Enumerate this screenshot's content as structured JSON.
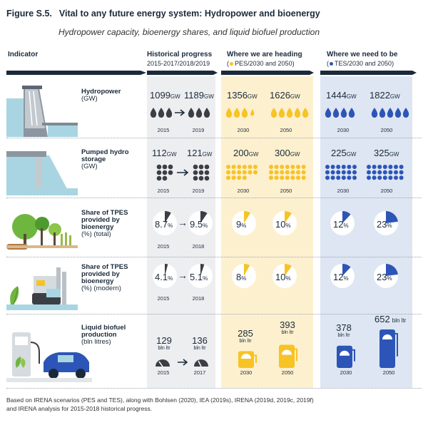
{
  "figure": {
    "number": "Figure S.5.",
    "title": "Vital to any future energy system: Hydropower and bioenergy",
    "subtitle": "Hydropower capacity, bioenergy shares, and liquid biofuel production"
  },
  "colors": {
    "navy": "#1b2a3a",
    "historical_bg": "#eceef0",
    "pes_bg": "#fdf0cf",
    "tes_bg": "#dde6f2",
    "yellow": "#f7c325",
    "blue": "#2d55b8",
    "grey_icon": "#3b3f45",
    "light_blue_scene": "#a9d5e2"
  },
  "headers": {
    "indicator": "Indicator",
    "historical": "Historical progress",
    "historical_sub": "2015-2017/2018/2019",
    "heading": "Where we are heading",
    "heading_sub": "PES/2030 and 2050)",
    "heading_sub_open": "(",
    "need": "Where we need to be",
    "need_sub": "TES/2030 and 2050)",
    "need_sub_open": "("
  },
  "rows": [
    {
      "label": "Hydropower",
      "unit": "(GW)",
      "icon": "hydropower-dam-icon",
      "hist": [
        {
          "value": "1099",
          "unit": "GW",
          "year": "2015"
        },
        {
          "value": "1189",
          "unit": "GW",
          "year": "2019"
        }
      ],
      "pes": [
        {
          "value": "1356",
          "unit": "GW",
          "year": "2030"
        },
        {
          "value": "1626",
          "unit": "GW",
          "year": "2050"
        }
      ],
      "tes": [
        {
          "value": "1444",
          "unit": "GW",
          "year": "2030"
        },
        {
          "value": "1822",
          "unit": "GW",
          "year": "2050"
        }
      ]
    },
    {
      "label": "Pumped hydro storage",
      "unit": "(GW)",
      "icon": "pumped-hydro-icon",
      "hist": [
        {
          "value": "112",
          "unit": "GW",
          "year": "2015"
        },
        {
          "value": "121",
          "unit": "GW",
          "year": "2019"
        }
      ],
      "pes": [
        {
          "value": "200",
          "unit": "GW",
          "year": "2030"
        },
        {
          "value": "300",
          "unit": "GW",
          "year": "2050"
        }
      ],
      "tes": [
        {
          "value": "225",
          "unit": "GW",
          "year": "2030"
        },
        {
          "value": "325",
          "unit": "GW",
          "year": "2050"
        }
      ]
    },
    {
      "label": "Share of TPES provided by bioenergy",
      "unit": "(%) (total)",
      "icon": "forest-icon",
      "hist": [
        {
          "value": "8.7",
          "unit": "%",
          "year": "2015",
          "share": 0.087
        },
        {
          "value": "9.5",
          "unit": "%",
          "year": "2018",
          "share": 0.095
        }
      ],
      "pes": [
        {
          "value": "9",
          "unit": "%",
          "year": "",
          "share": 0.09
        },
        {
          "value": "10",
          "unit": "%",
          "year": "",
          "share": 0.1
        }
      ],
      "tes": [
        {
          "value": "12",
          "unit": "%",
          "year": "",
          "share": 0.12
        },
        {
          "value": "23",
          "unit": "%",
          "year": "",
          "share": 0.23
        }
      ]
    },
    {
      "label": "Share of TPES provided by bioenergy",
      "unit": "(%) (modern)",
      "icon": "bio-plant-icon",
      "hist": [
        {
          "value": "4.1",
          "unit": "%",
          "year": "2015",
          "share": 0.041
        },
        {
          "value": "5.1",
          "unit": "%",
          "year": "2018",
          "share": 0.051
        }
      ],
      "pes": [
        {
          "value": "8",
          "unit": "%",
          "year": "",
          "share": 0.08
        },
        {
          "value": "10",
          "unit": "%",
          "year": "",
          "share": 0.1
        }
      ],
      "tes": [
        {
          "value": "12",
          "unit": "%",
          "year": "",
          "share": 0.12
        },
        {
          "value": "23",
          "unit": "%",
          "year": "",
          "share": 0.23
        }
      ]
    },
    {
      "label": "Liquid biofuel production",
      "unit": "(bln litres)",
      "icon": "biofuel-car-icon",
      "hist": [
        {
          "value": "129",
          "unit": "bln ltr",
          "year": "2015"
        },
        {
          "value": "136",
          "unit": "bln ltr",
          "year": "2017"
        }
      ],
      "pes": [
        {
          "value": "285",
          "unit": "bln ltr",
          "year": "2030"
        },
        {
          "value": "393",
          "unit": "bln ltr",
          "year": "2050"
        }
      ],
      "tes": [
        {
          "value": "378",
          "unit": "bln ltr",
          "year": "2030"
        },
        {
          "value": "652",
          "unit": "bln ltr",
          "year": "2050"
        }
      ]
    }
  ],
  "footnote": {
    "line1": "Based on IRENA scenarios (PES and TES), along with Bohlsen (2020), IEA (2019s), IRENA (2019d, 2019c, 2019f)",
    "line2": "and IRENA analysis for 2015-2018 historical progress."
  }
}
